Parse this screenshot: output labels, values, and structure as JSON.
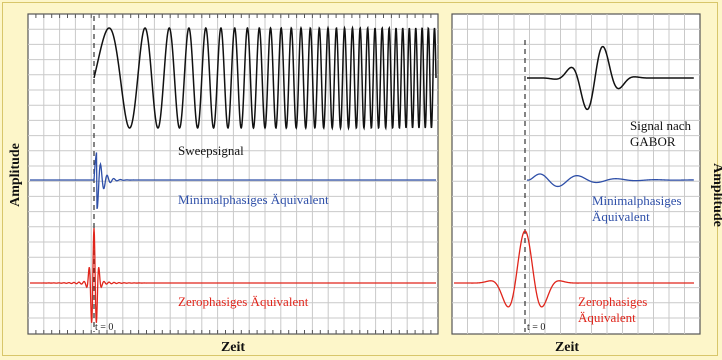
{
  "left_panel": {
    "sweep_label": "Sweepsignal",
    "min_label": "Minimalphasiges Äquivalent",
    "zero_label": "Zerophasiges Äquivalent",
    "t0_label": "t = 0",
    "xlabel": "Zeit",
    "ylabel": "Amplitude"
  },
  "right_panel": {
    "gabor_label_line1": "Signal nach",
    "gabor_label_line2": "GABOR",
    "min_label_line1": "Minimalphasiges",
    "min_label_line2": "Äquivalent",
    "zero_label_line1": "Zerophasiges",
    "zero_label_line2": "Äquivalent",
    "t0_label": "t = 0",
    "xlabel": "Zeit",
    "ylabel": "Amplitude"
  },
  "colors": {
    "background": "#fdf6c9",
    "sweep": "#111111",
    "minimal_phase": "#2e4fa8",
    "zero_phase": "#e0251b",
    "gabor": "#111111"
  }
}
